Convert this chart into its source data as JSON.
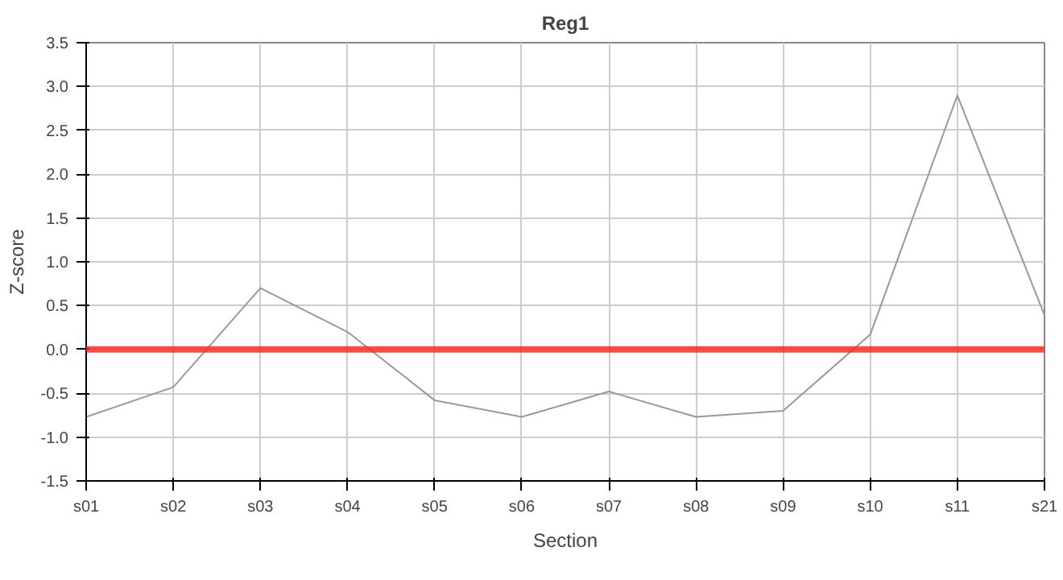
{
  "chart_data": {
    "type": "line",
    "title": "Reg1",
    "xlabel": "Section",
    "ylabel": "Z-score",
    "categories": [
      "s01",
      "s02",
      "s03",
      "s04",
      "s05",
      "s06",
      "s07",
      "s08",
      "s09",
      "s10",
      "s11",
      "s21"
    ],
    "series": [
      {
        "color": "#999999",
        "values": [
          -0.77,
          -0.43,
          0.7,
          0.2,
          -0.58,
          -0.77,
          -0.48,
          -0.77,
          -0.7,
          0.17,
          2.9,
          0.39
        ]
      }
    ],
    "ylim": [
      -1.5,
      3.5
    ],
    "yticks": [
      -1.5,
      {
        "value": -1,
        "label": "-1.0"
      },
      -0.5,
      {
        "value": 0,
        "label": "0.0"
      },
      0.5,
      {
        "value": 1,
        "label": "1.0"
      },
      1.5,
      {
        "value": 2,
        "label": "2.0"
      },
      2.5,
      {
        "value": 3,
        "label": "3.0"
      },
      3.5
    ],
    "ref_lines": [
      {
        "axis": "y",
        "value": 0,
        "color": "#ff2020"
      }
    ],
    "grid": true,
    "marker": "none",
    "line_style": "solid"
  }
}
